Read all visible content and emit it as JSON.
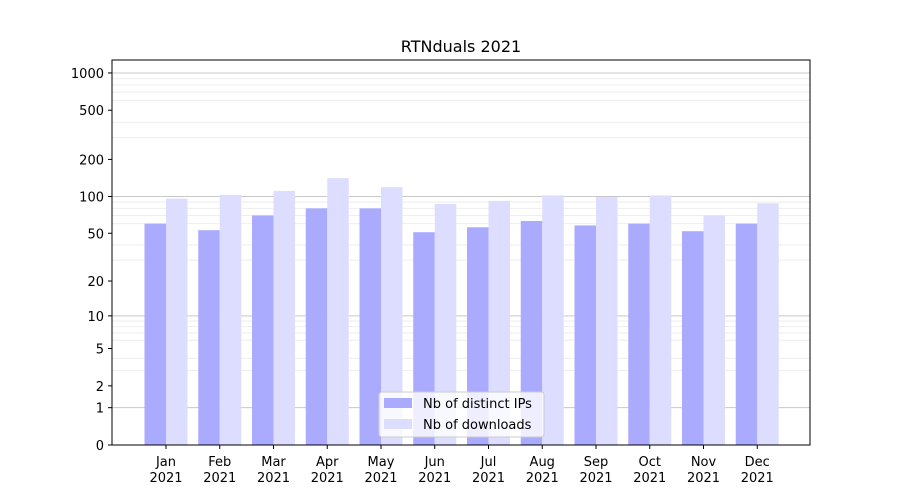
{
  "chart_data": {
    "type": "bar",
    "title": "RTNduals 2021",
    "xlabel": "",
    "ylabel": "",
    "yscale": "symlog (log10(1+y))",
    "ylim": [
      0,
      1300
    ],
    "yticks": [
      0,
      1,
      2,
      5,
      10,
      20,
      50,
      100,
      200,
      500,
      1000
    ],
    "grid": true,
    "legend_position": "bottom-center",
    "categories": [
      "Jan\n2021",
      "Feb\n2021",
      "Mar\n2021",
      "Apr\n2021",
      "May\n2021",
      "Jun\n2021",
      "Jul\n2021",
      "Aug\n2021",
      "Sep\n2021",
      "Oct\n2021",
      "Nov\n2021",
      "Dec\n2021"
    ],
    "series": [
      {
        "name": "Nb of distinct IPs",
        "color": "#aaaaff",
        "values": [
          60,
          53,
          70,
          80,
          80,
          51,
          56,
          63,
          58,
          60,
          52,
          60
        ]
      },
      {
        "name": "Nb of downloads",
        "color": "#ddddff",
        "values": [
          96,
          103,
          111,
          141,
          119,
          87,
          92,
          102,
          99,
          102,
          70,
          88
        ]
      }
    ]
  }
}
